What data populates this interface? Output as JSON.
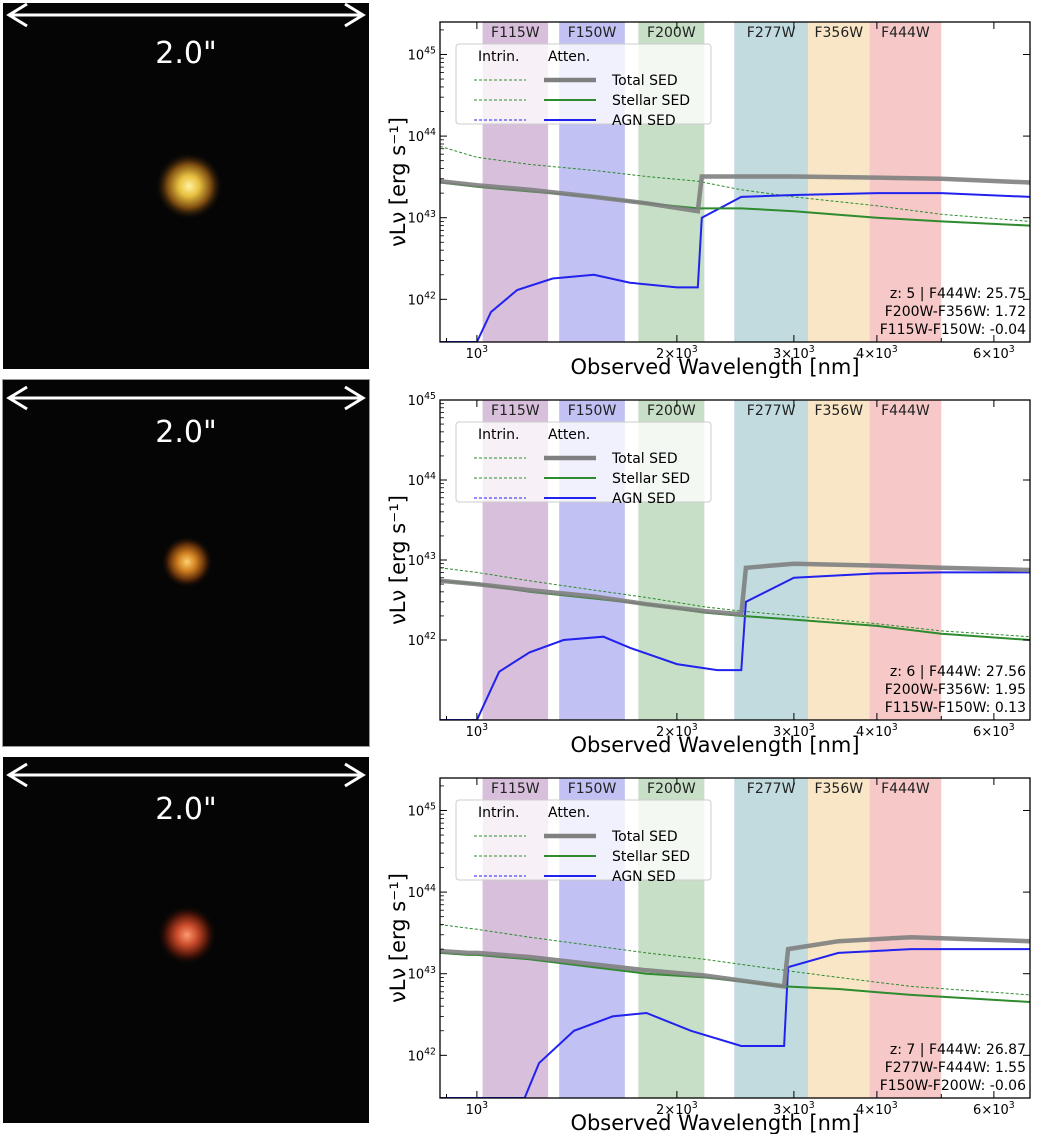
{
  "cutout_scale_label": "2.0\"",
  "chart_data": [
    {
      "type": "line",
      "xlabel": "Observed Wavelength [nm]",
      "ylabel": "νLν [erg s⁻¹]",
      "x_scale": "log",
      "y_scale": "log",
      "xlim": [
        880,
        6800
      ],
      "ylim": [
        3e+41,
        2.5e+45
      ],
      "x_ticks": [
        {
          "v": 1000,
          "b": "10",
          "e": "3"
        },
        {
          "v": 2000,
          "b": "2×10",
          "e": "3"
        },
        {
          "v": 3000,
          "b": "3×10",
          "e": "3"
        },
        {
          "v": 4000,
          "b": "4×10",
          "e": "3"
        },
        {
          "v": 6000,
          "b": "6×10",
          "e": "3"
        }
      ],
      "y_ticks": [
        {
          "v": 1e+42,
          "b": "10",
          "e": "42"
        },
        {
          "v": 1e+43,
          "b": "10",
          "e": "43"
        },
        {
          "v": 1e+44,
          "b": "10",
          "e": "44"
        },
        {
          "v": 1e+45,
          "b": "10",
          "e": "45"
        }
      ],
      "filters": [
        {
          "name": "F115W",
          "range": [
            1020,
            1280
          ],
          "color": "#c9a6cf"
        },
        {
          "name": "F150W",
          "range": [
            1330,
            1670
          ],
          "color": "#a9a9ee"
        },
        {
          "name": "F200W",
          "range": [
            1750,
            2200
          ],
          "color": "#b2d3b2"
        },
        {
          "name": "F277W",
          "range": [
            2440,
            3150
          ],
          "color": "#a9cdd3"
        },
        {
          "name": "F356W",
          "range": [
            3150,
            3900
          ],
          "color": "#f6dcb0"
        },
        {
          "name": "F444W",
          "range": [
            3900,
            5000
          ],
          "color": "#f2b3b3"
        }
      ],
      "legend": {
        "col1": "Intrin.",
        "col2": "Atten.",
        "entries": [
          "Total SED",
          "Stellar SED",
          "AGN SED"
        ],
        "location": "upper-left"
      },
      "annotation": [
        "z: 5 | F444W: 25.75",
        "F200W-F356W: 1.72",
        "F115W-F150W: -0.04"
      ],
      "series": [
        {
          "name": "Total SED (attenuated)",
          "color": "#808080",
          "x": [
            880,
            1000,
            1200,
            1500,
            1800,
            2150,
            2180,
            2500,
            3000,
            4000,
            5000,
            6800
          ],
          "y": [
            2.8e+43,
            2.5e+43,
            2.2e+43,
            1.8e+43,
            1.5e+43,
            1.2e+43,
            3.2e+43,
            3.2e+43,
            3.2e+43,
            3.1e+43,
            3e+43,
            2.7e+43
          ]
        },
        {
          "name": "Stellar SED (attenuated)",
          "color": "#2e8b2e",
          "x": [
            880,
            1000,
            1200,
            1500,
            1800,
            2150,
            2500,
            3000,
            4000,
            5000,
            6800
          ],
          "y": [
            2.7e+43,
            2.4e+43,
            2.1e+43,
            1.8e+43,
            1.5e+43,
            1.3e+43,
            1.3e+43,
            1.2e+43,
            1e+43,
            9e+42,
            8e+42
          ]
        },
        {
          "name": "Stellar SED (intrinsic)",
          "color": "#2e8b2e",
          "dashed": true,
          "x": [
            880,
            1000,
            1200,
            1500,
            1800,
            2150,
            2500,
            3000,
            4000,
            5000,
            6800
          ],
          "y": [
            7.5e+43,
            5.5e+43,
            4.5e+43,
            3.8e+43,
            3.2e+43,
            2.8e+43,
            2.2e+43,
            1.8e+43,
            1.4e+43,
            1.1e+43,
            9e+42
          ]
        },
        {
          "name": "AGN SED (attenuated)",
          "color": "#2222ee",
          "x": [
            880,
            1000,
            1050,
            1150,
            1300,
            1500,
            1700,
            2000,
            2150,
            2180,
            2500,
            3000,
            4000,
            5000,
            6800
          ],
          "y": [
            3e+41,
            3e+41,
            7e+41,
            1.3e+42,
            1.8e+42,
            2e+42,
            1.6e+42,
            1.4e+42,
            1.4e+42,
            1e+43,
            1.8e+43,
            1.9e+43,
            2e+43,
            2e+43,
            1.8e+43
          ]
        }
      ]
    },
    {
      "type": "line",
      "xlabel": "Observed Wavelength [nm]",
      "ylabel": "νLν [erg s⁻¹]",
      "x_scale": "log",
      "y_scale": "log",
      "xlim": [
        880,
        6800
      ],
      "ylim": [
        1e+41,
        1e+45
      ],
      "x_ticks": [
        {
          "v": 1000,
          "b": "10",
          "e": "3"
        },
        {
          "v": 2000,
          "b": "2×10",
          "e": "3"
        },
        {
          "v": 3000,
          "b": "3×10",
          "e": "3"
        },
        {
          "v": 4000,
          "b": "4×10",
          "e": "3"
        },
        {
          "v": 6000,
          "b": "6×10",
          "e": "3"
        }
      ],
      "y_ticks": [
        {
          "v": 1e+42,
          "b": "10",
          "e": "42"
        },
        {
          "v": 1e+43,
          "b": "10",
          "e": "43"
        },
        {
          "v": 1e+44,
          "b": "10",
          "e": "44"
        },
        {
          "v": 1e+45,
          "b": "10",
          "e": "45"
        }
      ],
      "filters": [
        {
          "name": "F115W",
          "range": [
            1020,
            1280
          ],
          "color": "#c9a6cf"
        },
        {
          "name": "F150W",
          "range": [
            1330,
            1670
          ],
          "color": "#a9a9ee"
        },
        {
          "name": "F200W",
          "range": [
            1750,
            2200
          ],
          "color": "#b2d3b2"
        },
        {
          "name": "F277W",
          "range": [
            2440,
            3150
          ],
          "color": "#a9cdd3"
        },
        {
          "name": "F356W",
          "range": [
            3150,
            3900
          ],
          "color": "#f6dcb0"
        },
        {
          "name": "F444W",
          "range": [
            3900,
            5000
          ],
          "color": "#f2b3b3"
        }
      ],
      "legend": {
        "col1": "Intrin.",
        "col2": "Atten.",
        "entries": [
          "Total SED",
          "Stellar SED",
          "AGN SED"
        ],
        "location": "upper-left"
      },
      "annotation": [
        "z: 6 | F444W: 27.56",
        "F200W-F356W: 1.95",
        "F115W-F150W: 0.13"
      ],
      "series": [
        {
          "name": "Total SED (attenuated)",
          "color": "#808080",
          "x": [
            880,
            1000,
            1200,
            1500,
            1800,
            2200,
            2500,
            2540,
            3000,
            4000,
            5000,
            6800
          ],
          "y": [
            5.5e+42,
            5e+42,
            4.2e+42,
            3.5e+42,
            2.8e+42,
            2.3e+42,
            2.1e+42,
            8e+42,
            9e+42,
            8.5e+42,
            8e+42,
            7.5e+42
          ]
        },
        {
          "name": "Stellar SED (attenuated)",
          "color": "#2e8b2e",
          "x": [
            880,
            1000,
            1200,
            1500,
            1800,
            2200,
            2500,
            3000,
            4000,
            5000,
            6800
          ],
          "y": [
            5.5e+42,
            5e+42,
            4e+42,
            3.3e+42,
            2.8e+42,
            2.2e+42,
            2e+42,
            1.8e+42,
            1.5e+42,
            1.2e+42,
            1e+42
          ]
        },
        {
          "name": "Stellar SED (intrinsic)",
          "color": "#2e8b2e",
          "dashed": true,
          "x": [
            880,
            1000,
            1200,
            1500,
            1800,
            2200,
            2500,
            3000,
            4000,
            5000,
            6800
          ],
          "y": [
            8e+42,
            7e+42,
            5.5e+42,
            4.2e+42,
            3.4e+42,
            2.6e+42,
            2.3e+42,
            2e+42,
            1.6e+42,
            1.3e+42,
            1.1e+42
          ]
        },
        {
          "name": "AGN SED (attenuated)",
          "color": "#2222ee",
          "x": [
            880,
            1000,
            1080,
            1200,
            1350,
            1550,
            1700,
            2000,
            2300,
            2500,
            2540,
            3000,
            4000,
            5000,
            6800
          ],
          "y": [
            1e+41,
            1e+41,
            4e+41,
            7e+41,
            1e+42,
            1.1e+42,
            8e+41,
            5e+41,
            4.2e+41,
            4.2e+41,
            3e+42,
            6e+42,
            6.8e+42,
            7e+42,
            7e+42
          ]
        }
      ]
    },
    {
      "type": "line",
      "xlabel": "Observed Wavelength [nm]",
      "ylabel": "νLν [erg s⁻¹]",
      "x_scale": "log",
      "y_scale": "log",
      "xlim": [
        880,
        6800
      ],
      "ylim": [
        3e+41,
        2.5e+45
      ],
      "x_ticks": [
        {
          "v": 1000,
          "b": "10",
          "e": "3"
        },
        {
          "v": 2000,
          "b": "2×10",
          "e": "3"
        },
        {
          "v": 3000,
          "b": "3×10",
          "e": "3"
        },
        {
          "v": 4000,
          "b": "4×10",
          "e": "3"
        },
        {
          "v": 6000,
          "b": "6×10",
          "e": "3"
        }
      ],
      "y_ticks": [
        {
          "v": 1e+42,
          "b": "10",
          "e": "42"
        },
        {
          "v": 1e+43,
          "b": "10",
          "e": "43"
        },
        {
          "v": 1e+44,
          "b": "10",
          "e": "44"
        },
        {
          "v": 1e+45,
          "b": "10",
          "e": "45"
        }
      ],
      "filters": [
        {
          "name": "F115W",
          "range": [
            1020,
            1280
          ],
          "color": "#c9a6cf"
        },
        {
          "name": "F150W",
          "range": [
            1330,
            1670
          ],
          "color": "#a9a9ee"
        },
        {
          "name": "F200W",
          "range": [
            1750,
            2200
          ],
          "color": "#b2d3b2"
        },
        {
          "name": "F277W",
          "range": [
            2440,
            3150
          ],
          "color": "#a9cdd3"
        },
        {
          "name": "F356W",
          "range": [
            3150,
            3900
          ],
          "color": "#f6dcb0"
        },
        {
          "name": "F444W",
          "range": [
            3900,
            5000
          ],
          "color": "#f2b3b3"
        }
      ],
      "legend": {
        "col1": "Intrin.",
        "col2": "Atten.",
        "entries": [
          "Total SED",
          "Stellar SED",
          "AGN SED"
        ],
        "location": "upper-left"
      },
      "annotation": [
        "z: 7 | F444W: 26.87",
        "F277W-F444W: 1.55",
        "F150W-F200W: -0.06"
      ],
      "series": [
        {
          "name": "Total SED (attenuated)",
          "color": "#808080",
          "x": [
            880,
            970,
            1000,
            1200,
            1500,
            1800,
            2200,
            2900,
            2940,
            3500,
            4500,
            6800
          ],
          "y": [
            1.9e+43,
            1.8e+43,
            1.8e+43,
            1.6e+43,
            1.3e+43,
            1.1e+43,
            9.5e+42,
            7e+42,
            2e+43,
            2.5e+43,
            2.8e+43,
            2.5e+43
          ]
        },
        {
          "name": "Stellar SED (attenuated)",
          "color": "#2e8b2e",
          "x": [
            880,
            970,
            1000,
            1200,
            1500,
            1800,
            2200,
            2900,
            3500,
            4500,
            6800
          ],
          "y": [
            1.8e+43,
            1.7e+43,
            1.7e+43,
            1.5e+43,
            1.2e+43,
            1e+43,
            9e+42,
            7e+42,
            6.5e+42,
            5.5e+42,
            4.5e+42
          ]
        },
        {
          "name": "Stellar SED (intrinsic)",
          "color": "#2e8b2e",
          "dashed": true,
          "x": [
            880,
            1000,
            1200,
            1500,
            1800,
            2200,
            2900,
            3500,
            4500,
            6800
          ],
          "y": [
            4e+43,
            3.5e+43,
            2.8e+43,
            2.2e+43,
            1.8e+43,
            1.5e+43,
            1.1e+43,
            9e+42,
            7e+42,
            5.5e+42
          ]
        },
        {
          "name": "AGN SED (attenuated)",
          "color": "#2222ee",
          "x": [
            880,
            1180,
            1240,
            1400,
            1600,
            1800,
            2100,
            2500,
            2900,
            2940,
            3500,
            4500,
            6800
          ],
          "y": [
            3e+41,
            3e+41,
            8e+41,
            2e+42,
            3e+42,
            3.3e+42,
            2e+42,
            1.3e+42,
            1.3e+42,
            1.2e+43,
            1.8e+43,
            2e+43,
            2e+43
          ]
        }
      ]
    }
  ]
}
